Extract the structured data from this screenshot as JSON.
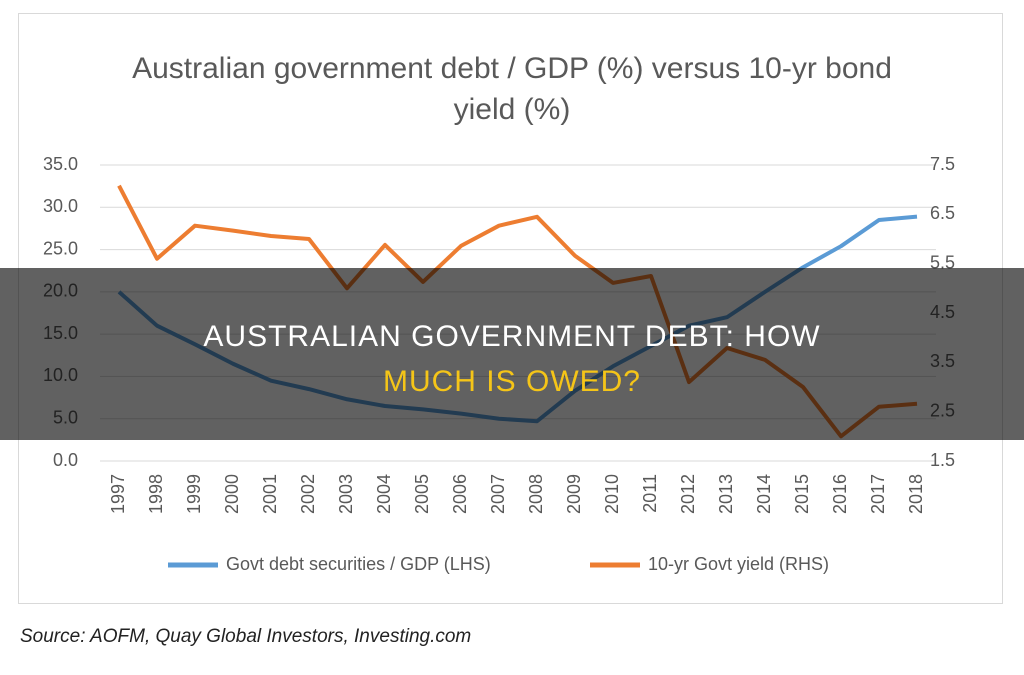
{
  "chart_data": {
    "type": "line",
    "title": "Australian government debt / GDP (%) versus 10-yr bond yield (%)",
    "categories": [
      "1997",
      "1998",
      "1999",
      "2000",
      "2001",
      "2002",
      "2003",
      "2004",
      "2005",
      "2006",
      "2007",
      "2008",
      "2009",
      "2010",
      "2011",
      "2012",
      "2013",
      "2014",
      "2015",
      "2016",
      "2017",
      "2018"
    ],
    "series": [
      {
        "name": "Govt debt securities / GDP (LHS)",
        "color": "#5b9bd5",
        "values": [
          20.0,
          16.0,
          13.8,
          11.5,
          9.5,
          8.5,
          7.3,
          6.5,
          6.1,
          5.6,
          5.0,
          4.7,
          8.3,
          11.2,
          13.6,
          16.0,
          17.0,
          20.0,
          22.9,
          25.4,
          28.5,
          28.9
        ]
      },
      {
        "name": "10-yr Govt yield (RHS)",
        "color": "#ed7d31",
        "axis": "y2",
        "values": [
          7.08,
          5.6,
          6.27,
          6.17,
          6.06,
          6.0,
          5.0,
          5.88,
          5.13,
          5.86,
          6.27,
          6.45,
          5.66,
          5.11,
          5.25,
          3.1,
          3.79,
          3.55,
          3.0,
          2.0,
          2.6,
          2.66
        ]
      }
    ],
    "ylim": [
      0,
      35
    ],
    "yticks": [
      {
        "value": 0,
        "label": "0.0"
      },
      {
        "value": 5,
        "label": "5.0"
      },
      {
        "value": 10,
        "label": "10.0"
      },
      {
        "value": 15,
        "label": "15.0"
      },
      {
        "value": 20,
        "label": "20.0"
      },
      {
        "value": 25,
        "label": "25.0"
      },
      {
        "value": 30,
        "label": "30.0"
      },
      {
        "value": 35,
        "label": "35.0"
      }
    ],
    "y2lim": [
      1.5,
      7.5
    ],
    "y2ticks": [
      1.5,
      2.5,
      3.5,
      4.5,
      5.5,
      6.5,
      7.5
    ],
    "grid": true,
    "legend": "bottom"
  },
  "overlay_title": [
    "AUSTRALIAN GOVERNMENT DEBT: HOW",
    "MUCH IS OWED?"
  ],
  "source": "Source: AOFM, Quay Global Investors, Investing.com"
}
